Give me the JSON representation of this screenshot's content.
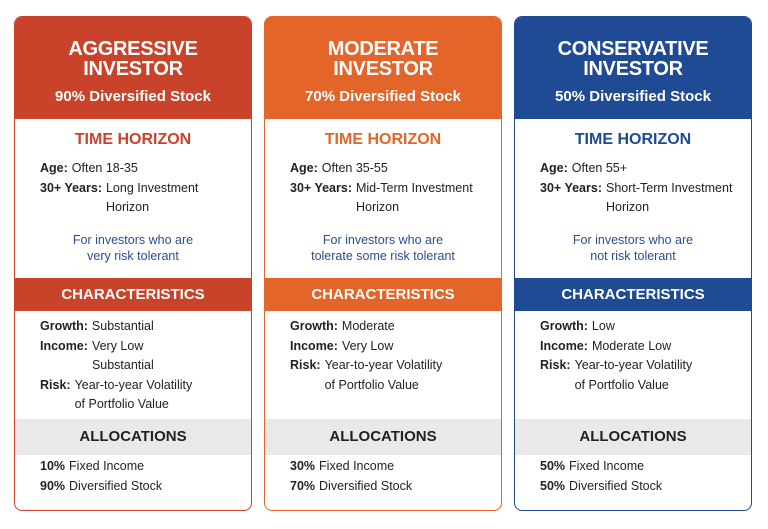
{
  "cards": [
    {
      "color": "#c9432a",
      "title_lines": [
        "AGGRESSIVE",
        "INVESTOR"
      ],
      "subtitle": "90% Diversified Stock",
      "time_heading": "TIME HORIZON",
      "time_items": [
        {
          "label": "Age:",
          "lines": [
            "Often 18-35"
          ]
        },
        {
          "label": "30+ Years:",
          "lines": [
            "Long Investment",
            "Horizon"
          ]
        }
      ],
      "note_lines": [
        "For investors who are",
        "very risk tolerant"
      ],
      "char_heading": "CHARACTERISTICS",
      "char_items": [
        {
          "label": "Growth:",
          "lines": [
            "Substantial"
          ]
        },
        {
          "label": "Income:",
          "lines": [
            "Very Low",
            "Substantial"
          ]
        },
        {
          "label": "Risk:",
          "lines": [
            "Year-to-year Volatility",
            "of Portfolio Value"
          ]
        }
      ],
      "alloc_heading": "ALLOCATIONS",
      "alloc_items": [
        {
          "label": "10%",
          "lines": [
            "Fixed Income"
          ]
        },
        {
          "label": "90%",
          "lines": [
            "Diversified Stock"
          ]
        }
      ]
    },
    {
      "color": "#e3652a",
      "title_lines": [
        "MODERATE",
        "INVESTOR"
      ],
      "subtitle": "70% Diversified Stock",
      "time_heading": "TIME HORIZON",
      "time_items": [
        {
          "label": "Age:",
          "lines": [
            "Often 35-55"
          ]
        },
        {
          "label": "30+ Years:",
          "lines": [
            "Mid-Term Investment",
            "Horizon"
          ]
        }
      ],
      "note_lines": [
        "For investors who are",
        "tolerate some risk tolerant"
      ],
      "char_heading": "CHARACTERISTICS",
      "char_items": [
        {
          "label": "Growth:",
          "lines": [
            "Moderate"
          ]
        },
        {
          "label": "Income:",
          "lines": [
            "Very Low"
          ]
        },
        {
          "label": "Risk:",
          "lines": [
            "Year-to-year Volatility",
            "of Portfolio Value"
          ]
        }
      ],
      "alloc_heading": "ALLOCATIONS",
      "alloc_items": [
        {
          "label": "30%",
          "lines": [
            "Fixed Income"
          ]
        },
        {
          "label": "70%",
          "lines": [
            "Diversified Stock"
          ]
        }
      ]
    },
    {
      "color": "#1f4a94",
      "title_lines": [
        "CONSERVATIVE",
        "INVESTOR"
      ],
      "subtitle": "50% Diversified Stock",
      "time_heading": "TIME HORIZON",
      "time_items": [
        {
          "label": "Age:",
          "lines": [
            "Often 55+"
          ]
        },
        {
          "label": "30+ Years:",
          "lines": [
            "Short-Term Investment",
            "Horizon"
          ]
        }
      ],
      "note_lines": [
        "For investors who are",
        "not risk tolerant"
      ],
      "char_heading": "CHARACTERISTICS",
      "char_items": [
        {
          "label": "Growth:",
          "lines": [
            "Low"
          ]
        },
        {
          "label": "Income:",
          "lines": [
            "Moderate Low"
          ]
        },
        {
          "label": "Risk:",
          "lines": [
            "Year-to-year Volatility",
            "of Portfolio Value"
          ]
        }
      ],
      "alloc_heading": "ALLOCATIONS",
      "alloc_items": [
        {
          "label": "50%",
          "lines": [
            "Fixed Income"
          ]
        },
        {
          "label": "50%",
          "lines": [
            "Diversified Stock"
          ]
        }
      ]
    }
  ]
}
